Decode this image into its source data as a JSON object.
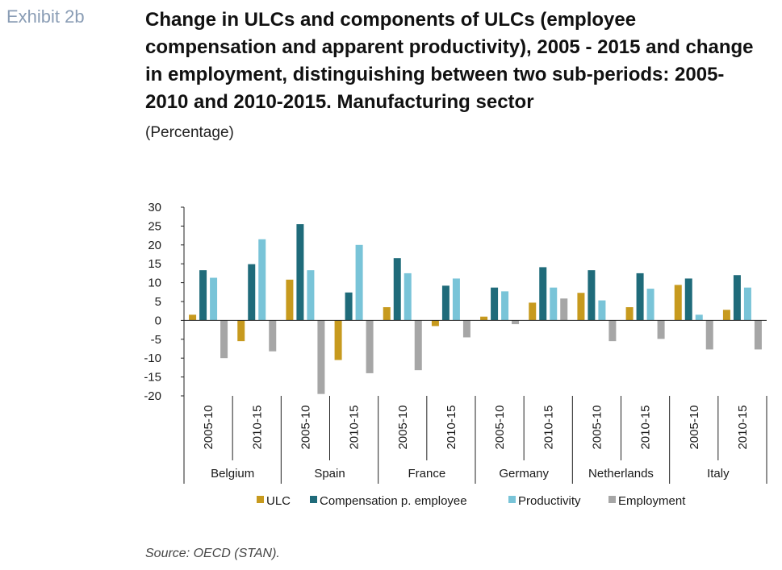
{
  "header": {
    "exhibit": "Exhibit 2b",
    "title": "Change in ULCs and components of ULCs (employee compensation and apparent productivity), 2005 - 2015 and change in employment, distinguishing between two sub-periods: 2005-2010 and 2010-2015. Manufacturing sector",
    "subtitle": "(Percentage)"
  },
  "footer": {
    "source": "Source: OECD (STAN)."
  },
  "chart_data": {
    "type": "bar",
    "title": "",
    "xlabel": "",
    "ylabel": "",
    "ylim": [
      -20,
      30
    ],
    "yticks": [
      30,
      25,
      20,
      15,
      10,
      5,
      0,
      -5,
      -10,
      -15,
      -20
    ],
    "grid": false,
    "legend_position": "bottom",
    "groups": [
      "Belgium",
      "Spain",
      "France",
      "Germany",
      "Netherlands",
      "Italy"
    ],
    "subcategories": [
      "2005-10",
      "2010-15"
    ],
    "categories": [
      "Belgium 2005-10",
      "Belgium 2010-15",
      "Spain 2005-10",
      "Spain 2010-15",
      "France 2005-10",
      "France 2010-15",
      "Germany 2005-10",
      "Germany 2010-15",
      "Netherlands 2005-10",
      "Netherlands 2010-15",
      "Italy 2005-10",
      "Italy 2010-15"
    ],
    "series": [
      {
        "name": "ULC",
        "color": "#c79a1e",
        "values": [
          1.5,
          -5.5,
          10.8,
          -10.5,
          3.5,
          -1.5,
          1.0,
          4.7,
          7.3,
          3.5,
          9.4,
          2.8
        ]
      },
      {
        "name": "Compensation p. employee",
        "color": "#1f6b7a",
        "values": [
          13.3,
          14.9,
          25.5,
          7.4,
          16.5,
          9.2,
          8.7,
          14.1,
          13.3,
          12.5,
          11.1,
          12.0
        ]
      },
      {
        "name": "Productivity",
        "color": "#79c4d8",
        "values": [
          11.3,
          21.5,
          13.3,
          20.0,
          12.5,
          11.1,
          7.7,
          8.7,
          5.3,
          8.4,
          1.5,
          8.7
        ]
      },
      {
        "name": "Employment",
        "color": "#a6a6a6",
        "values": [
          -10.0,
          -8.2,
          -19.5,
          -14.0,
          -13.2,
          -4.5,
          -1.0,
          5.8,
          -5.5,
          -4.9,
          -7.7,
          -7.7
        ]
      }
    ]
  }
}
